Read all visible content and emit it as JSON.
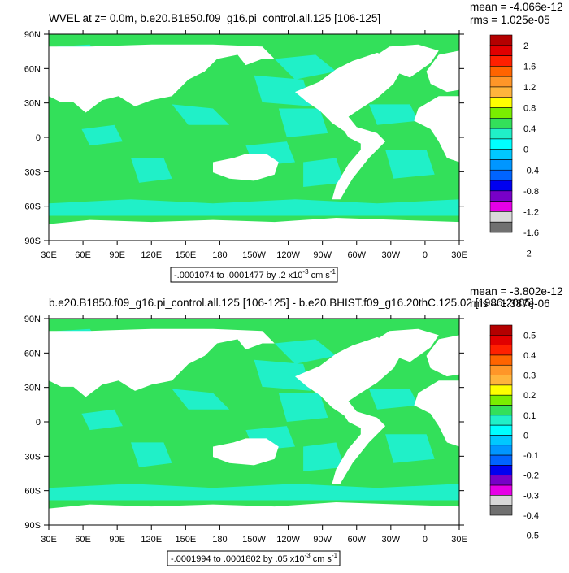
{
  "colors": {
    "ocean_positive": "#33e05a",
    "ocean_negative": "#20f0c8",
    "land": "#ffffff"
  },
  "chart_data": [
    {
      "type": "heatmap",
      "title": "WVEL at z=    0.0m, b.e20.B1850.f09_g16.pi_control.all.125 [106-125]",
      "stats": {
        "mean": "mean = -4.066e-12",
        "rms": "rms = 1.025e-05"
      },
      "x_ticks": [
        "30E",
        "60E",
        "90E",
        "120E",
        "150E",
        "180",
        "150W",
        "120W",
        "90W",
        "60W",
        "30W",
        "0",
        "30E"
      ],
      "y_ticks": [
        "90N",
        "60N",
        "30N",
        "0",
        "30S",
        "60S",
        "90S"
      ],
      "info_box": {
        "prefix": "-.0001074 to .0001477 by .2 x10",
        "exponent": "-3",
        "units": " cm s",
        "units_exp": "-1"
      },
      "colorbar": {
        "colors": [
          "#b40000",
          "#e10000",
          "#ff2000",
          "#ff6400",
          "#ff9628",
          "#ffb43c",
          "#ffff00",
          "#7aee00",
          "#33e05a",
          "#20f0c8",
          "#00ffff",
          "#00c8ff",
          "#0096ff",
          "#0064ff",
          "#0000f0",
          "#7800c8",
          "#e600e6",
          "#d8d8d8",
          "#707070"
        ],
        "labels": [
          "2",
          "1.6",
          "1.2",
          "0.8",
          "0.4",
          "0",
          "-0.4",
          "-0.8",
          "-1.2",
          "-1.6",
          "-2"
        ]
      }
    },
    {
      "type": "heatmap",
      "title": "b.e20.B1850.f09_g16.pi_control.all.125 [106-125] - b.e20.BHIST.f09_g16.20thC.125.02 [1986-2005]",
      "stats": {
        "mean": "mean = -3.802e-12",
        "rms": "rms = 1.387e-06"
      },
      "x_ticks": [
        "30E",
        "60E",
        "90E",
        "120E",
        "150E",
        "180",
        "150W",
        "120W",
        "90W",
        "60W",
        "30W",
        "0",
        "30E"
      ],
      "y_ticks": [
        "90N",
        "60N",
        "30N",
        "0",
        "30S",
        "60S",
        "90S"
      ],
      "info_box": {
        "prefix": "-.0001994 to .0001802 by .05 x10",
        "exponent": "-3",
        "units": " cm s",
        "units_exp": "-1"
      },
      "colorbar": {
        "colors": [
          "#b40000",
          "#e10000",
          "#ff2000",
          "#ff6400",
          "#ff9628",
          "#ffb43c",
          "#ffff00",
          "#7aee00",
          "#33e05a",
          "#20f0c8",
          "#00ffff",
          "#00c8ff",
          "#0096ff",
          "#0064ff",
          "#0000f0",
          "#7800c8",
          "#e600e6",
          "#d8d8d8",
          "#707070"
        ],
        "labels": [
          "0.5",
          "0.4",
          "0.3",
          "0.2",
          "0.1",
          "0",
          "-0.1",
          "-0.2",
          "-0.3",
          "-0.4",
          "-0.5"
        ]
      }
    }
  ]
}
